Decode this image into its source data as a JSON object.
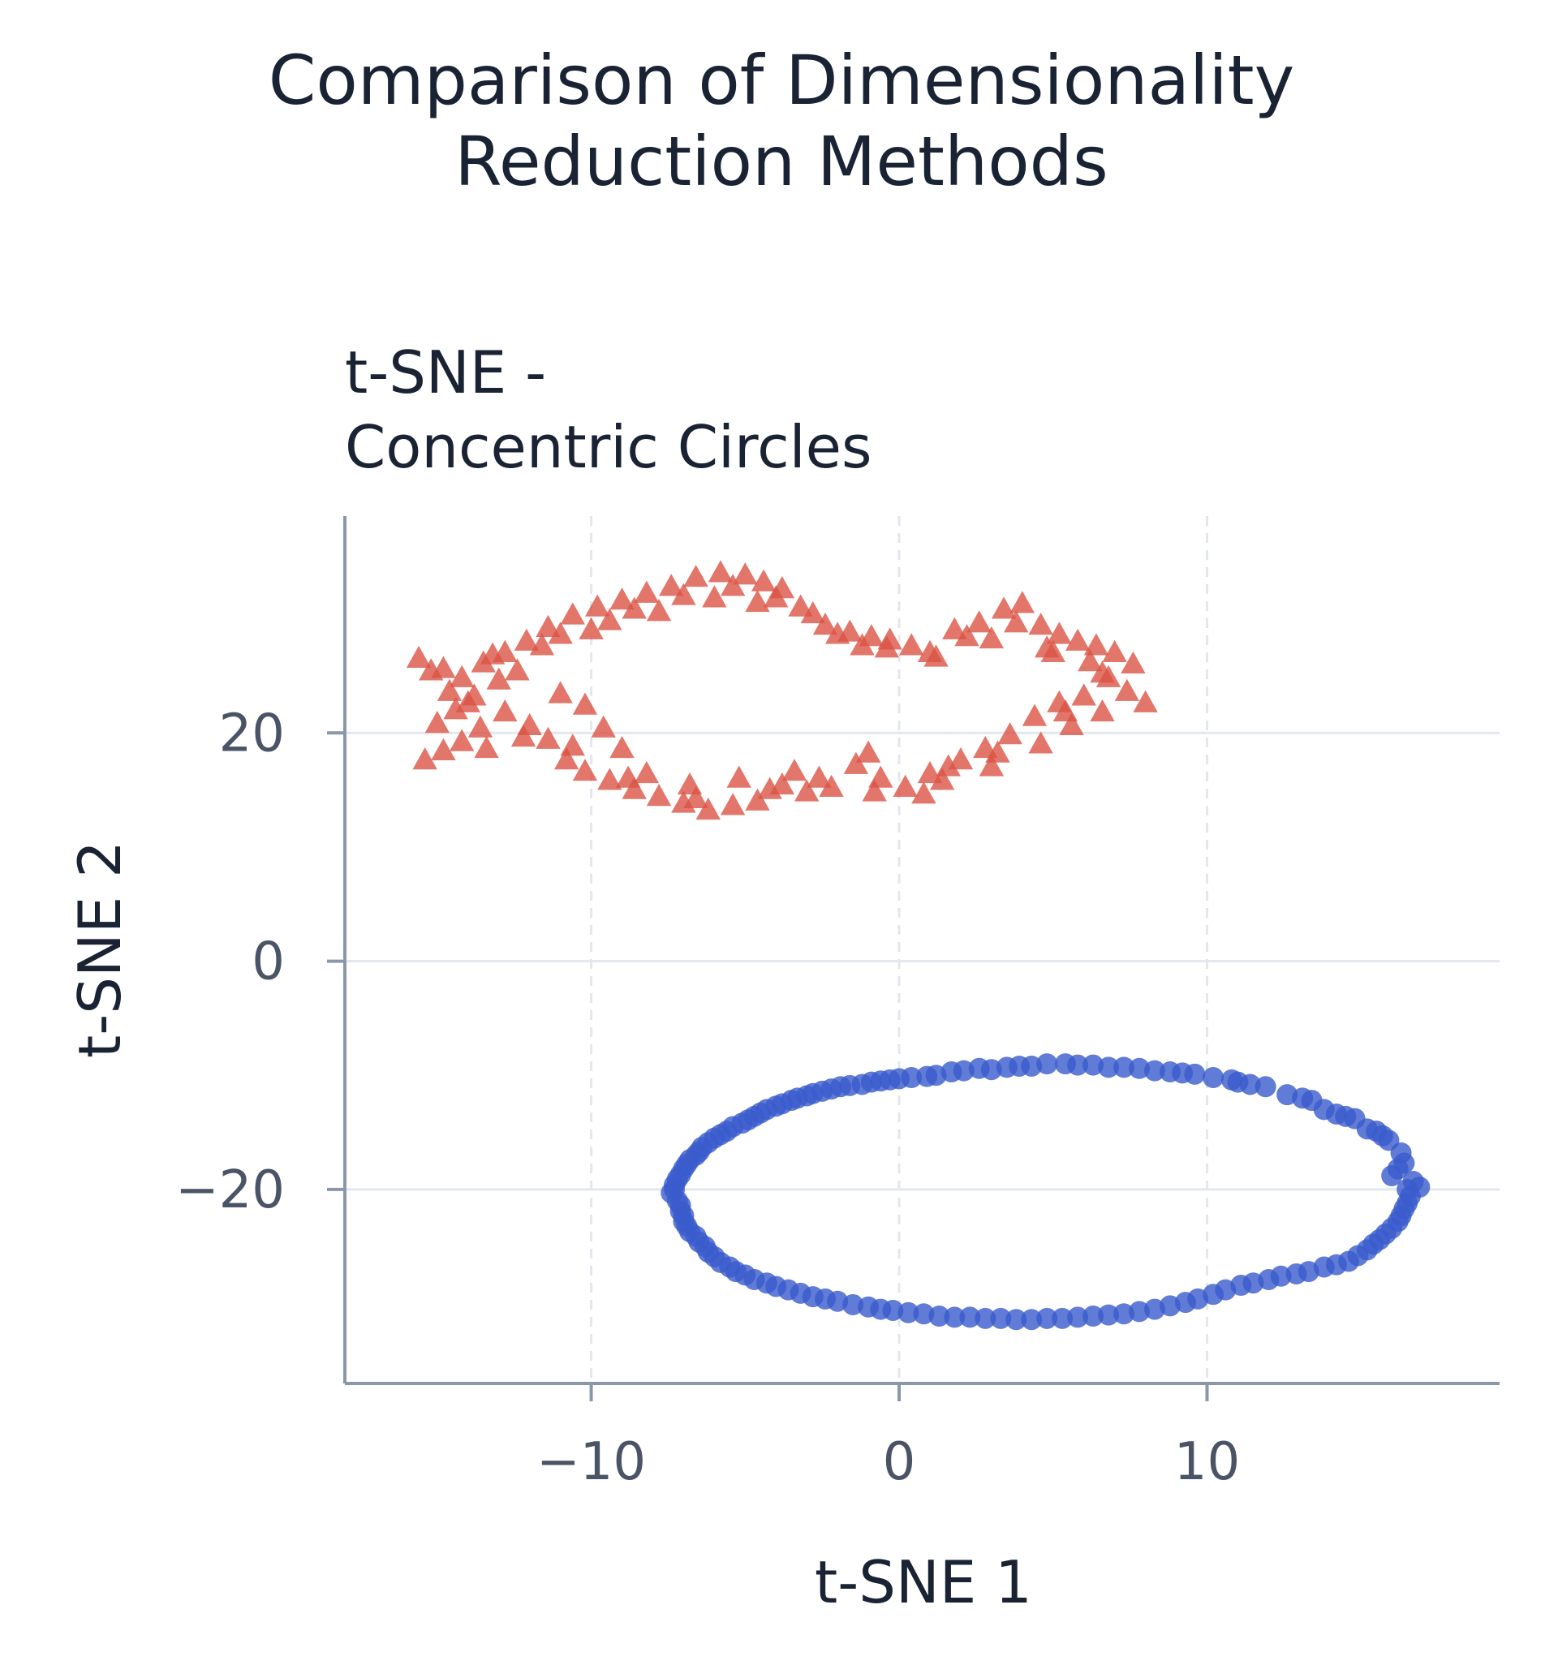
{
  "chart_data": {
    "type": "scatter",
    "title": "Comparison of Dimensionality Reduction Methods",
    "title_lines": [
      "Comparison of Dimensionality",
      "Reduction Methods"
    ],
    "subtitle": "t-SNE - Concentric Circles",
    "subtitle_lines": [
      "t-SNE -",
      "Concentric Circles"
    ],
    "xlabel": "t-SNE 1",
    "ylabel": "t-SNE 2",
    "xlim": [
      -18,
      19.5
    ],
    "ylim": [
      -37,
      39
    ],
    "xticks": [
      -10,
      0,
      10
    ],
    "xtick_labels": [
      "−10",
      "0",
      "10"
    ],
    "yticks": [
      20,
      0,
      -20
    ],
    "ytick_labels": [
      "20",
      "0",
      "−20"
    ],
    "grid": true,
    "legend": "none",
    "colors": {
      "outer_ring": "#3a5bcc",
      "inner_ring": "#db5445",
      "text": "#1a2333",
      "tick_text": "#4a5466",
      "spine": "#8a97ab",
      "grid": "#e3e7ee"
    },
    "series": [
      {
        "marker": "circle",
        "color": "#3a5bcc",
        "points": [
          [
            16.5,
            -20.0
          ],
          [
            16.4,
            -17.7
          ],
          [
            15.9,
            -15.7
          ],
          [
            14.8,
            -13.8
          ],
          [
            13.4,
            -12.2
          ],
          [
            11.9,
            -11.0
          ],
          [
            10.2,
            -10.2
          ],
          [
            8.3,
            -9.6
          ],
          [
            6.3,
            -9.1
          ],
          [
            4.3,
            -9.2
          ],
          [
            2.6,
            -9.4
          ],
          [
            0.9,
            -10.1
          ],
          [
            -0.6,
            -10.5
          ],
          [
            -1.9,
            -11.0
          ],
          [
            -3.0,
            -11.8
          ],
          [
            -4.0,
            -12.7
          ],
          [
            -4.9,
            -13.9
          ],
          [
            -5.8,
            -15.2
          ],
          [
            -6.5,
            -16.7
          ],
          [
            -7.0,
            -18.2
          ],
          [
            -7.3,
            -20.0
          ],
          [
            -7.1,
            -21.9
          ],
          [
            -6.8,
            -23.7
          ],
          [
            -6.2,
            -25.5
          ],
          [
            -5.3,
            -27.2
          ],
          [
            -4.0,
            -28.5
          ],
          [
            -2.4,
            -29.6
          ],
          [
            -0.6,
            -30.5
          ],
          [
            1.3,
            -31.1
          ],
          [
            3.3,
            -31.3
          ],
          [
            5.3,
            -31.3
          ],
          [
            7.3,
            -30.9
          ],
          [
            9.3,
            -29.9
          ],
          [
            11.1,
            -28.4
          ],
          [
            12.9,
            -27.4
          ],
          [
            14.6,
            -26.3
          ],
          [
            15.6,
            -24.4
          ],
          [
            16.3,
            -22.3
          ],
          [
            16.0,
            -18.8
          ],
          [
            15.2,
            -14.7
          ],
          [
            13.8,
            -13.0
          ],
          [
            11.0,
            -10.6
          ],
          [
            9.2,
            -9.8
          ],
          [
            7.3,
            -9.3
          ],
          [
            5.4,
            -9.0
          ],
          [
            3.5,
            -9.3
          ],
          [
            1.7,
            -9.7
          ],
          [
            0.0,
            -10.3
          ],
          [
            -1.2,
            -10.8
          ],
          [
            -2.5,
            -11.4
          ],
          [
            -3.5,
            -12.2
          ],
          [
            -4.5,
            -13.3
          ],
          [
            -5.4,
            -14.5
          ],
          [
            -6.2,
            -15.9
          ],
          [
            -6.8,
            -17.4
          ],
          [
            -7.2,
            -19.1
          ],
          [
            -7.2,
            -21.0
          ],
          [
            -7.0,
            -22.8
          ],
          [
            -6.5,
            -24.6
          ],
          [
            -5.8,
            -26.4
          ],
          [
            -4.7,
            -27.9
          ],
          [
            -3.2,
            -29.1
          ],
          [
            -1.5,
            -30.1
          ],
          [
            0.3,
            -30.8
          ],
          [
            2.3,
            -31.2
          ],
          [
            4.3,
            -31.4
          ],
          [
            6.3,
            -31.1
          ],
          [
            8.3,
            -30.5
          ],
          [
            10.2,
            -29.2
          ],
          [
            12.0,
            -27.9
          ],
          [
            13.8,
            -26.8
          ],
          [
            15.2,
            -25.3
          ],
          [
            16.0,
            -23.4
          ],
          [
            16.5,
            -21.2
          ],
          [
            16.7,
            -19.3
          ],
          [
            16.3,
            -16.8
          ],
          [
            15.5,
            -14.9
          ],
          [
            14.2,
            -13.4
          ],
          [
            12.6,
            -11.7
          ],
          [
            10.8,
            -10.4
          ],
          [
            8.8,
            -9.7
          ],
          [
            6.8,
            -9.3
          ],
          [
            4.8,
            -9.0
          ],
          [
            3.0,
            -9.5
          ],
          [
            1.2,
            -10.0
          ],
          [
            -0.3,
            -10.4
          ],
          [
            -1.6,
            -10.9
          ],
          [
            -2.8,
            -11.6
          ],
          [
            -3.8,
            -12.5
          ],
          [
            -4.7,
            -13.6
          ],
          [
            -5.6,
            -14.9
          ],
          [
            -6.4,
            -16.3
          ],
          [
            -6.9,
            -17.8
          ],
          [
            -7.3,
            -19.6
          ],
          [
            -7.1,
            -21.4
          ],
          [
            -6.9,
            -23.2
          ],
          [
            -6.3,
            -25.0
          ],
          [
            -5.5,
            -26.8
          ],
          [
            -4.3,
            -28.2
          ],
          [
            -2.8,
            -29.4
          ],
          [
            -1.0,
            -30.3
          ],
          [
            0.8,
            -30.9
          ],
          [
            2.8,
            -31.3
          ],
          [
            4.8,
            -31.3
          ],
          [
            6.8,
            -31.0
          ],
          [
            8.8,
            -30.2
          ],
          [
            10.6,
            -28.8
          ],
          [
            12.4,
            -27.6
          ],
          [
            14.2,
            -26.6
          ],
          [
            15.4,
            -24.8
          ],
          [
            16.2,
            -22.8
          ],
          [
            16.6,
            -20.6
          ],
          [
            16.2,
            -18.2
          ],
          [
            15.7,
            -15.3
          ],
          [
            14.5,
            -13.6
          ],
          [
            13.1,
            -12.0
          ],
          [
            11.4,
            -10.8
          ],
          [
            9.6,
            -9.9
          ],
          [
            7.8,
            -9.4
          ],
          [
            5.8,
            -9.1
          ],
          [
            3.9,
            -9.2
          ],
          [
            2.1,
            -9.6
          ],
          [
            0.4,
            -10.2
          ],
          [
            -0.9,
            -10.6
          ],
          [
            -2.2,
            -11.2
          ],
          [
            -3.3,
            -12.0
          ],
          [
            -4.3,
            -13.0
          ],
          [
            -5.1,
            -14.2
          ],
          [
            -6.0,
            -15.5
          ],
          [
            -6.6,
            -17.0
          ],
          [
            -7.1,
            -18.7
          ],
          [
            -7.4,
            -20.3
          ],
          [
            -7.0,
            -22.3
          ],
          [
            -6.6,
            -24.1
          ],
          [
            -6.0,
            -25.9
          ],
          [
            -5.0,
            -27.5
          ],
          [
            -3.6,
            -28.8
          ],
          [
            -2.0,
            -29.8
          ],
          [
            -0.2,
            -30.6
          ],
          [
            1.8,
            -31.2
          ],
          [
            3.8,
            -31.4
          ],
          [
            5.8,
            -31.2
          ],
          [
            7.8,
            -30.7
          ],
          [
            9.7,
            -29.6
          ],
          [
            11.5,
            -28.2
          ],
          [
            13.3,
            -27.2
          ],
          [
            14.9,
            -25.8
          ],
          [
            15.8,
            -23.9
          ],
          [
            16.4,
            -21.7
          ],
          [
            16.9,
            -19.8
          ]
        ]
      },
      {
        "marker": "triangle",
        "color": "#db5445",
        "points": [
          [
            -15.6,
            26.5
          ],
          [
            -14.8,
            25.6
          ],
          [
            -14.2,
            24.8
          ],
          [
            -13.5,
            26.1
          ],
          [
            -12.8,
            27.0
          ],
          [
            -12.1,
            28.0
          ],
          [
            -11.4,
            29.2
          ],
          [
            -10.6,
            30.3
          ],
          [
            -9.8,
            31.0
          ],
          [
            -9.0,
            31.6
          ],
          [
            -8.2,
            32.2
          ],
          [
            -7.4,
            32.8
          ],
          [
            -6.6,
            33.6
          ],
          [
            -5.8,
            34.0
          ],
          [
            -5.0,
            33.8
          ],
          [
            -4.4,
            33.2
          ],
          [
            -3.8,
            32.6
          ],
          [
            -3.2,
            31.0
          ],
          [
            -2.4,
            29.4
          ],
          [
            -1.6,
            28.8
          ],
          [
            -0.9,
            28.4
          ],
          [
            -0.3,
            28.1
          ],
          [
            0.4,
            27.6
          ],
          [
            1.0,
            27.0
          ],
          [
            1.8,
            29.0
          ],
          [
            2.6,
            29.6
          ],
          [
            3.4,
            30.8
          ],
          [
            4.0,
            31.3
          ],
          [
            4.6,
            29.4
          ],
          [
            5.2,
            28.6
          ],
          [
            5.8,
            28.0
          ],
          [
            6.4,
            27.6
          ],
          [
            7.0,
            27.0
          ],
          [
            7.6,
            26.0
          ],
          [
            6.8,
            24.8
          ],
          [
            6.0,
            23.2
          ],
          [
            5.2,
            22.6
          ],
          [
            4.4,
            21.4
          ],
          [
            3.6,
            19.8
          ],
          [
            2.8,
            18.6
          ],
          [
            2.0,
            17.6
          ],
          [
            1.4,
            15.8
          ],
          [
            0.8,
            14.6
          ],
          [
            0.2,
            15.2
          ],
          [
            -0.6,
            16.0
          ],
          [
            -1.4,
            17.2
          ],
          [
            -2.2,
            15.2
          ],
          [
            -3.0,
            14.8
          ],
          [
            -3.8,
            15.4
          ],
          [
            -4.6,
            14.0
          ],
          [
            -5.4,
            13.6
          ],
          [
            -6.2,
            13.2
          ],
          [
            -7.0,
            13.8
          ],
          [
            -7.8,
            14.4
          ],
          [
            -8.6,
            15.0
          ],
          [
            -9.4,
            15.8
          ],
          [
            -10.2,
            16.6
          ],
          [
            -10.8,
            17.6
          ],
          [
            -11.4,
            19.4
          ],
          [
            -12.0,
            20.6
          ],
          [
            -12.8,
            21.8
          ],
          [
            -13.6,
            20.4
          ],
          [
            -14.2,
            19.2
          ],
          [
            -14.8,
            18.4
          ],
          [
            -15.4,
            17.6
          ],
          [
            -15.0,
            20.8
          ],
          [
            -14.4,
            22.0
          ],
          [
            -13.8,
            23.2
          ],
          [
            -12.4,
            25.4
          ],
          [
            -11.0,
            23.4
          ],
          [
            -10.2,
            22.4
          ],
          [
            -9.6,
            20.4
          ],
          [
            -9.0,
            18.6
          ],
          [
            -8.2,
            16.4
          ],
          [
            -6.8,
            15.4
          ],
          [
            -5.2,
            16.0
          ],
          [
            -3.4,
            16.6
          ],
          [
            -1.0,
            18.2
          ],
          [
            1.6,
            17.0
          ],
          [
            3.0,
            17.0
          ],
          [
            4.6,
            19.0
          ],
          [
            5.6,
            20.6
          ],
          [
            6.6,
            21.8
          ],
          [
            7.4,
            23.6
          ],
          [
            8.0,
            22.6
          ],
          [
            6.2,
            26.2
          ],
          [
            4.8,
            27.4
          ],
          [
            3.0,
            28.2
          ],
          [
            1.2,
            26.6
          ],
          [
            -1.2,
            27.6
          ],
          [
            -2.8,
            30.4
          ],
          [
            -4.6,
            31.4
          ],
          [
            -6.0,
            31.8
          ],
          [
            -7.8,
            30.6
          ],
          [
            -9.4,
            29.8
          ],
          [
            -11.0,
            28.6
          ],
          [
            -13.0,
            24.6
          ],
          [
            -14.6,
            23.6
          ],
          [
            -15.2,
            25.4
          ],
          [
            -13.2,
            26.8
          ],
          [
            -11.6,
            27.6
          ],
          [
            -10.0,
            29.0
          ],
          [
            -8.6,
            30.8
          ],
          [
            -7.0,
            32.0
          ],
          [
            -5.4,
            32.8
          ],
          [
            -4.0,
            31.8
          ],
          [
            -2.0,
            28.6
          ],
          [
            -0.4,
            27.4
          ],
          [
            2.2,
            28.4
          ],
          [
            3.8,
            29.6
          ],
          [
            5.0,
            27.0
          ],
          [
            6.6,
            25.2
          ],
          [
            5.4,
            21.8
          ],
          [
            3.2,
            18.2
          ],
          [
            1.0,
            16.4
          ],
          [
            -0.8,
            14.8
          ],
          [
            -2.6,
            16.0
          ],
          [
            -4.2,
            15.0
          ],
          [
            -6.6,
            14.2
          ],
          [
            -8.8,
            16.0
          ],
          [
            -10.6,
            18.8
          ],
          [
            -12.2,
            19.6
          ],
          [
            -13.4,
            18.6
          ],
          [
            -14.0,
            22.6
          ]
        ]
      }
    ]
  }
}
